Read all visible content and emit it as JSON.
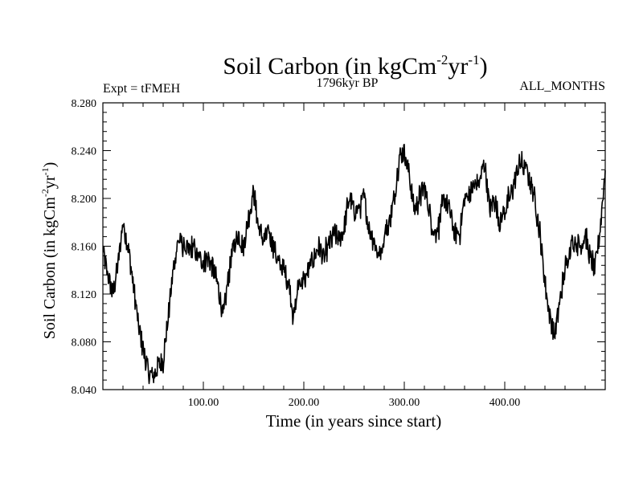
{
  "header": {
    "title_main": "Soil Carbon (in kgCm",
    "title_exp1": "-2",
    "title_mid": "yr",
    "title_exp2": "-1",
    "title_end": ")",
    "expt": "Expt = tFMEH",
    "period": "1796kyr BP",
    "months": "ALL_MONTHS"
  },
  "axes": {
    "xlabel": "Time (in years since start)",
    "ylabel_main": "Soil Carbon (in kgCm",
    "ylabel_exp1": "-2",
    "ylabel_mid": "yr",
    "ylabel_exp2": "-1",
    "ylabel_end": ")"
  },
  "chart_data": {
    "type": "line",
    "title": "Soil Carbon (in kgCm-2yr-1)",
    "xlabel": "Time (in years since start)",
    "ylabel": "Soil Carbon (in kgCm-2yr-1)",
    "xlim": [
      0,
      500
    ],
    "ylim": [
      8.04,
      8.28
    ],
    "x_ticks": [
      100,
      200,
      300,
      400
    ],
    "x_tick_labels": [
      "100.00",
      "200.00",
      "300.00",
      "400.00"
    ],
    "y_ticks": [
      8.04,
      8.08,
      8.12,
      8.16,
      8.2,
      8.24,
      8.28
    ],
    "y_tick_labels": [
      "8.040",
      "8.080",
      "8.120",
      "8.160",
      "8.200",
      "8.240",
      "8.280"
    ],
    "grid": false,
    "color": "#000000",
    "series": [
      {
        "name": "Soil Carbon",
        "x": [
          0,
          5,
          10,
          15,
          20,
          25,
          30,
          35,
          40,
          45,
          50,
          55,
          60,
          65,
          70,
          75,
          80,
          85,
          90,
          95,
          100,
          105,
          110,
          115,
          120,
          125,
          130,
          135,
          140,
          145,
          150,
          155,
          160,
          165,
          170,
          175,
          180,
          185,
          190,
          195,
          200,
          205,
          210,
          215,
          220,
          225,
          230,
          235,
          240,
          245,
          250,
          255,
          260,
          265,
          270,
          275,
          280,
          285,
          290,
          295,
          300,
          305,
          310,
          315,
          320,
          325,
          330,
          335,
          340,
          345,
          350,
          355,
          360,
          365,
          370,
          375,
          380,
          385,
          390,
          395,
          400,
          405,
          410,
          415,
          420,
          425,
          430,
          435,
          440,
          445,
          450,
          455,
          460,
          465,
          470,
          475,
          480,
          485,
          490,
          495,
          500
        ],
        "values": [
          8.155,
          8.135,
          8.12,
          8.145,
          8.18,
          8.16,
          8.13,
          8.095,
          8.075,
          8.055,
          8.05,
          8.06,
          8.065,
          8.1,
          8.14,
          8.165,
          8.16,
          8.155,
          8.16,
          8.15,
          8.148,
          8.15,
          8.14,
          8.125,
          8.1,
          8.135,
          8.16,
          8.17,
          8.16,
          8.185,
          8.205,
          8.175,
          8.165,
          8.17,
          8.16,
          8.145,
          8.14,
          8.13,
          8.1,
          8.13,
          8.13,
          8.14,
          8.15,
          8.16,
          8.15,
          8.16,
          8.17,
          8.165,
          8.175,
          8.2,
          8.19,
          8.19,
          8.2,
          8.175,
          8.165,
          8.15,
          8.17,
          8.18,
          8.2,
          8.235,
          8.24,
          8.22,
          8.19,
          8.2,
          8.21,
          8.19,
          8.17,
          8.18,
          8.2,
          8.19,
          8.17,
          8.17,
          8.2,
          8.205,
          8.21,
          8.215,
          8.23,
          8.19,
          8.2,
          8.18,
          8.19,
          8.2,
          8.215,
          8.23,
          8.225,
          8.215,
          8.2,
          8.17,
          8.13,
          8.1,
          8.085,
          8.115,
          8.14,
          8.16,
          8.165,
          8.16,
          8.17,
          8.15,
          8.14,
          8.175,
          8.225
        ]
      }
    ]
  }
}
